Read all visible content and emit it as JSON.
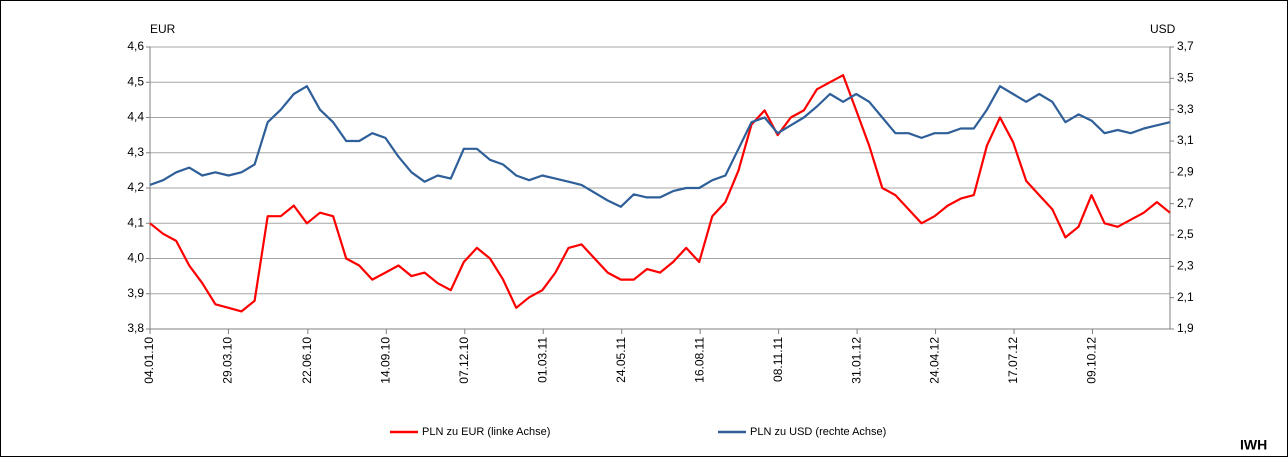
{
  "chart_data": {
    "type": "line",
    "x": [
      "04.01.10",
      "18.01.10",
      "01.02.10",
      "15.02.10",
      "01.03.10",
      "15.03.10",
      "29.03.10",
      "12.04.10",
      "26.04.10",
      "10.05.10",
      "24.05.10",
      "07.06.10",
      "21.06.10",
      "05.07.10",
      "19.07.10",
      "02.08.10",
      "16.08.10",
      "30.08.10",
      "13.09.10",
      "27.09.10",
      "11.10.10",
      "25.10.10",
      "08.11.10",
      "22.11.10",
      "06.12.10",
      "20.12.10",
      "03.01.11",
      "17.01.11",
      "31.01.11",
      "14.02.11",
      "28.02.11",
      "14.03.11",
      "28.03.11",
      "11.04.11",
      "25.04.11",
      "09.05.11",
      "23.05.11",
      "06.06.11",
      "20.06.11",
      "04.07.11",
      "18.07.11",
      "01.08.11",
      "15.08.11",
      "29.08.11",
      "12.09.11",
      "26.09.11",
      "10.10.11",
      "24.10.11",
      "07.11.11",
      "21.11.11",
      "05.12.11",
      "19.12.11",
      "02.01.12",
      "16.01.12",
      "30.01.12",
      "13.02.12",
      "27.02.12",
      "12.03.12",
      "26.03.12",
      "09.04.12",
      "23.04.12",
      "07.05.12",
      "21.05.12",
      "04.06.12",
      "18.06.12",
      "02.07.12",
      "16.07.12",
      "30.07.12",
      "13.08.12",
      "27.08.12",
      "10.09.12",
      "24.09.12",
      "08.10.12",
      "22.10.12",
      "05.11.12",
      "19.11.12",
      "03.12.12",
      "17.12.12",
      "31.12.12"
    ],
    "xticks": [
      "04.01.10",
      "29.03.10",
      "22.06.10",
      "14.09.10",
      "07.12.10",
      "01.03.11",
      "24.05.11",
      "16.08.11",
      "08.11.11",
      "31.01.12",
      "24.04.12",
      "17.07.12",
      "09.10.12"
    ],
    "ylabel": "EUR",
    "y2label": "USD",
    "ylim": [
      3.8,
      4.6
    ],
    "yticks": [
      {
        "value": 3.8,
        "label": "3,8"
      },
      {
        "value": 3.9,
        "label": "3,9"
      },
      {
        "value": 4.0,
        "label": "4,0"
      },
      {
        "value": 4.1,
        "label": "4,1"
      },
      {
        "value": 4.2,
        "label": "4,2"
      },
      {
        "value": 4.3,
        "label": "4,3"
      },
      {
        "value": 4.4,
        "label": "4,4"
      },
      {
        "value": 4.5,
        "label": "4,5"
      },
      {
        "value": 4.6,
        "label": "4,6"
      }
    ],
    "y2lim": [
      1.9,
      3.7
    ],
    "y2ticks": [
      {
        "value": 1.9,
        "label": "1,9"
      },
      {
        "value": 2.1,
        "label": "2,1"
      },
      {
        "value": 2.3,
        "label": "2,3"
      },
      {
        "value": 2.5,
        "label": "2,5"
      },
      {
        "value": 2.7,
        "label": "2,7"
      },
      {
        "value": 2.9,
        "label": "2,9"
      },
      {
        "value": 3.1,
        "label": "3,1"
      },
      {
        "value": 3.3,
        "label": "3,3"
      },
      {
        "value": 3.5,
        "label": "3,5"
      },
      {
        "value": 3.7,
        "label": "3,7"
      }
    ],
    "grid": true,
    "series": [
      {
        "name": "PLN zu EUR (linke Achse)",
        "color": "#ff0000",
        "axis": "y",
        "values": [
          4.1,
          4.07,
          4.05,
          3.98,
          3.93,
          3.87,
          3.86,
          3.85,
          3.88,
          4.12,
          4.12,
          4.15,
          4.1,
          4.13,
          4.12,
          4.0,
          3.98,
          3.94,
          3.96,
          3.98,
          3.95,
          3.96,
          3.93,
          3.91,
          3.99,
          4.03,
          4.0,
          3.94,
          3.86,
          3.89,
          3.91,
          3.96,
          4.03,
          4.04,
          4.0,
          3.96,
          3.94,
          3.94,
          3.97,
          3.96,
          3.99,
          4.03,
          3.99,
          4.12,
          4.16,
          4.25,
          4.38,
          4.42,
          4.35,
          4.4,
          4.42,
          4.48,
          4.5,
          4.52,
          4.42,
          4.32,
          4.2,
          4.18,
          4.14,
          4.1,
          4.12,
          4.15,
          4.17,
          4.18,
          4.32,
          4.4,
          4.33,
          4.22,
          4.18,
          4.14,
          4.06,
          4.09,
          4.18,
          4.1,
          4.09,
          4.11,
          4.13,
          4.16,
          4.13
        ]
      },
      {
        "name": "PLN zu USD (rechte Achse)",
        "color": "#2e5f99",
        "axis": "y2",
        "values": [
          2.82,
          2.85,
          2.9,
          2.93,
          2.88,
          2.9,
          2.88,
          2.9,
          2.95,
          3.22,
          3.3,
          3.4,
          3.45,
          3.3,
          3.22,
          3.1,
          3.1,
          3.15,
          3.12,
          3.0,
          2.9,
          2.84,
          2.88,
          2.86,
          3.05,
          3.05,
          2.98,
          2.95,
          2.88,
          2.85,
          2.88,
          2.86,
          2.84,
          2.82,
          2.77,
          2.72,
          2.68,
          2.76,
          2.74,
          2.74,
          2.78,
          2.8,
          2.8,
          2.85,
          2.88,
          3.05,
          3.22,
          3.25,
          3.15,
          3.2,
          3.25,
          3.32,
          3.4,
          3.35,
          3.4,
          3.35,
          3.25,
          3.15,
          3.15,
          3.12,
          3.15,
          3.15,
          3.18,
          3.18,
          3.3,
          3.45,
          3.4,
          3.35,
          3.4,
          3.35,
          3.22,
          3.27,
          3.23,
          3.15,
          3.17,
          3.15,
          3.18,
          3.2,
          3.22
        ]
      }
    ]
  },
  "footer": "IWH"
}
